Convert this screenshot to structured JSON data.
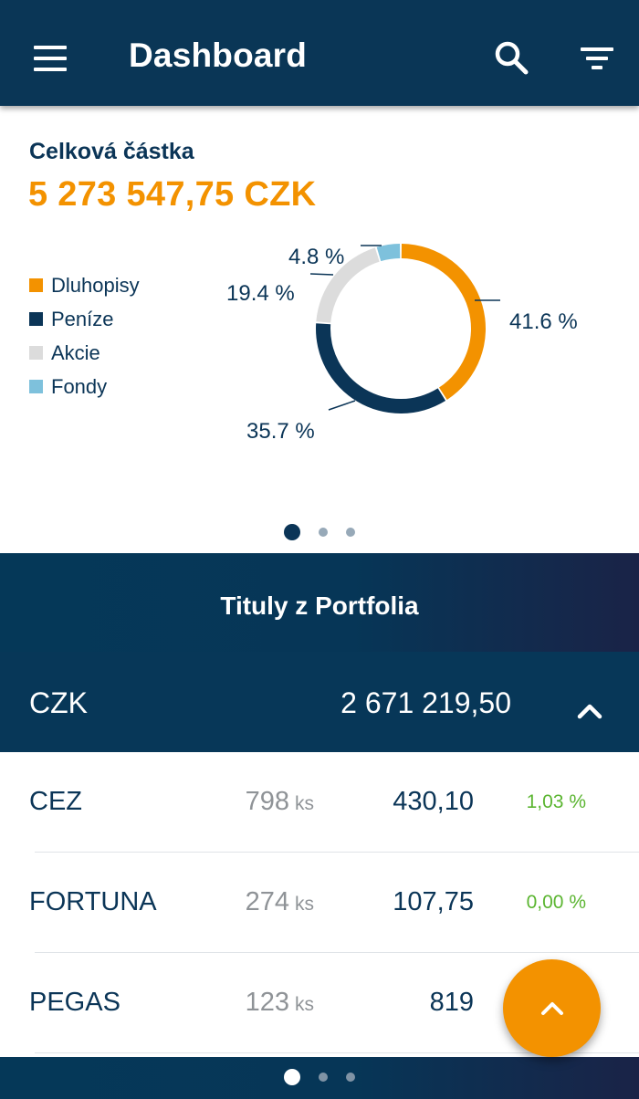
{
  "appbar": {
    "title": "Dashboard",
    "menu_icon": "hamburger-menu-icon",
    "search_icon": "search-icon",
    "filter_icon": "filter-icon"
  },
  "summary": {
    "total_label": "Celková částka",
    "total_value": "5 273 547,75 CZK",
    "legend": [
      {
        "label": "Dluhopisy",
        "color": "#f39200"
      },
      {
        "label": "Peníze",
        "color": "#0b3557"
      },
      {
        "label": "Akcie",
        "color": "#dcdcdc"
      },
      {
        "label": "Fondy",
        "color": "#7ec1dc"
      }
    ],
    "pager": {
      "count": 3,
      "active": 0
    }
  },
  "chart_data": {
    "type": "pie",
    "donut": true,
    "categories": [
      "Dluhopisy",
      "Peníze",
      "Akcie",
      "Fondy"
    ],
    "values": [
      41.6,
      35.7,
      19.4,
      4.8
    ],
    "labels": [
      "41.6 %",
      "35.7 %",
      "19.4 %",
      "4.8 %"
    ],
    "colors": [
      "#f39200",
      "#0b3557",
      "#dcdcdc",
      "#7ec1dc"
    ],
    "legend_position": "left"
  },
  "portfolio": {
    "title": "Tituly z Portfolia",
    "currency": {
      "code": "CZK",
      "total": "2 671 219,50",
      "collapse_icon": "chevron-up-icon"
    },
    "items": [
      {
        "name": "CEZ",
        "qty": "798",
        "unit": "ks",
        "price": "430,10",
        "change": "1,03 %"
      },
      {
        "name": "FORTUNA",
        "qty": "274",
        "unit": "ks",
        "price": "107,75",
        "change": "0,00 %"
      },
      {
        "name": "PEGAS",
        "qty": "123",
        "unit": "ks",
        "price": "819",
        "change": ""
      }
    ]
  },
  "fab": {
    "icon": "chevron-up-icon"
  },
  "bottom_pager": {
    "count": 3,
    "active": 0
  }
}
